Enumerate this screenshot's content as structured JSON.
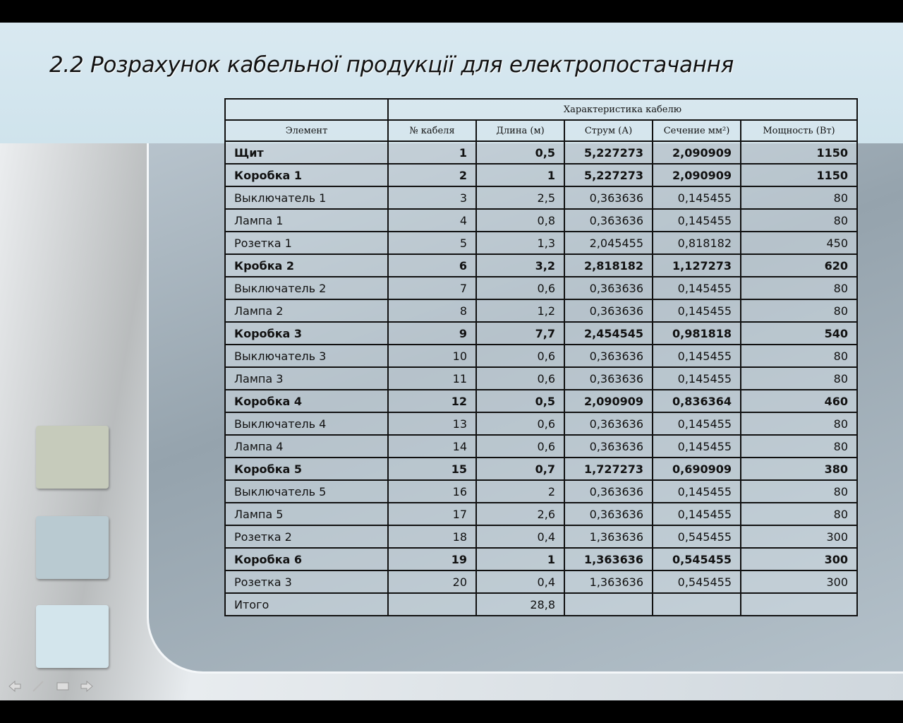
{
  "title": "2.2 Розрахунок кабельної продукції для електропостачання",
  "table": {
    "group": "Характеристика кабелю",
    "columns": [
      "Элемент",
      "№ кабеля",
      "Длина (м)",
      "Струм (А)",
      "Сечение мм²)",
      "Мощность (Вт)"
    ],
    "rows": [
      {
        "cells": [
          "Щит",
          "1",
          "0,5",
          "5,227273",
          "2,090909",
          "1150"
        ],
        "bold": true
      },
      {
        "cells": [
          "Коробка 1",
          "2",
          "1",
          "5,227273",
          "2,090909",
          "1150"
        ],
        "bold": true
      },
      {
        "cells": [
          "Выключатель 1",
          "3",
          "2,5",
          "0,363636",
          "0,145455",
          "80"
        ],
        "bold": false
      },
      {
        "cells": [
          "Лампа 1",
          "4",
          "0,8",
          "0,363636",
          "0,145455",
          "80"
        ],
        "bold": false
      },
      {
        "cells": [
          "Розетка 1",
          "5",
          "1,3",
          "2,045455",
          "0,818182",
          "450"
        ],
        "bold": false
      },
      {
        "cells": [
          "Кробка 2",
          "6",
          "3,2",
          "2,818182",
          "1,127273",
          "620"
        ],
        "bold": true
      },
      {
        "cells": [
          "Выключатель 2",
          "7",
          "0,6",
          "0,363636",
          "0,145455",
          "80"
        ],
        "bold": false
      },
      {
        "cells": [
          "Лампа 2",
          "8",
          "1,2",
          "0,363636",
          "0,145455",
          "80"
        ],
        "bold": false
      },
      {
        "cells": [
          "Коробка 3",
          "9",
          "7,7",
          "2,454545",
          "0,981818",
          "540"
        ],
        "bold": true
      },
      {
        "cells": [
          "Выключатель 3",
          "10",
          "0,6",
          "0,363636",
          "0,145455",
          "80"
        ],
        "bold": false
      },
      {
        "cells": [
          "Лампа 3",
          "11",
          "0,6",
          "0,363636",
          "0,145455",
          "80"
        ],
        "bold": false
      },
      {
        "cells": [
          "Коробка 4",
          "12",
          "0,5",
          "2,090909",
          "0,836364",
          "460"
        ],
        "bold": true
      },
      {
        "cells": [
          "Выключатель 4",
          "13",
          "0,6",
          "0,363636",
          "0,145455",
          "80"
        ],
        "bold": false
      },
      {
        "cells": [
          "Лампа 4",
          "14",
          "0,6",
          "0,363636",
          "0,145455",
          "80"
        ],
        "bold": false
      },
      {
        "cells": [
          "Коробка 5",
          "15",
          "0,7",
          "1,727273",
          "0,690909",
          "380"
        ],
        "bold": true
      },
      {
        "cells": [
          "Выключатель 5",
          "16",
          "2",
          "0,363636",
          "0,145455",
          "80"
        ],
        "bold": false
      },
      {
        "cells": [
          "Лампа 5",
          "17",
          "2,6",
          "0,363636",
          "0,145455",
          "80"
        ],
        "bold": false
      },
      {
        "cells": [
          "Розетка 2",
          "18",
          "0,4",
          "1,363636",
          "0,545455",
          "300"
        ],
        "bold": false
      },
      {
        "cells": [
          "Коробка 6",
          "19",
          "1",
          "1,363636",
          "0,545455",
          "300"
        ],
        "bold": true
      },
      {
        "cells": [
          "Розетка 3",
          "20",
          "0,4",
          "1,363636",
          "0,545455",
          "300"
        ],
        "bold": false
      },
      {
        "cells": [
          "Итого",
          null,
          "28,8",
          null,
          null,
          null
        ],
        "bold": false
      }
    ]
  }
}
